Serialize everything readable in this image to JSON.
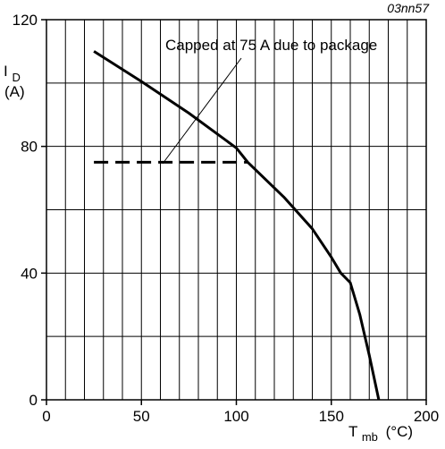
{
  "chart_data": {
    "type": "line",
    "figure_id": "03nn57",
    "xlabel": {
      "main": "T",
      "sub": "mb",
      "unit": "(°C)"
    },
    "ylabel": {
      "main": "I",
      "sub": "D",
      "unit": "(A)"
    },
    "xlim": [
      0,
      200
    ],
    "ylim": [
      0,
      120
    ],
    "x_ticks": [
      0,
      50,
      100,
      150,
      200
    ],
    "y_ticks": [
      0,
      40,
      80,
      120
    ],
    "grid": true,
    "annotation": "Capped at 75 A due to package",
    "series": [
      {
        "style": "solid",
        "x": [
          25,
          50,
          75,
          100,
          106,
          125,
          140,
          150,
          155,
          160,
          165,
          170,
          175
        ],
        "y": [
          110,
          100.5,
          90.5,
          79.5,
          75,
          64,
          54,
          45,
          40,
          37,
          27,
          14,
          0
        ]
      },
      {
        "style": "dashed",
        "x": [
          25,
          106
        ],
        "y": [
          75,
          75
        ]
      }
    ]
  }
}
